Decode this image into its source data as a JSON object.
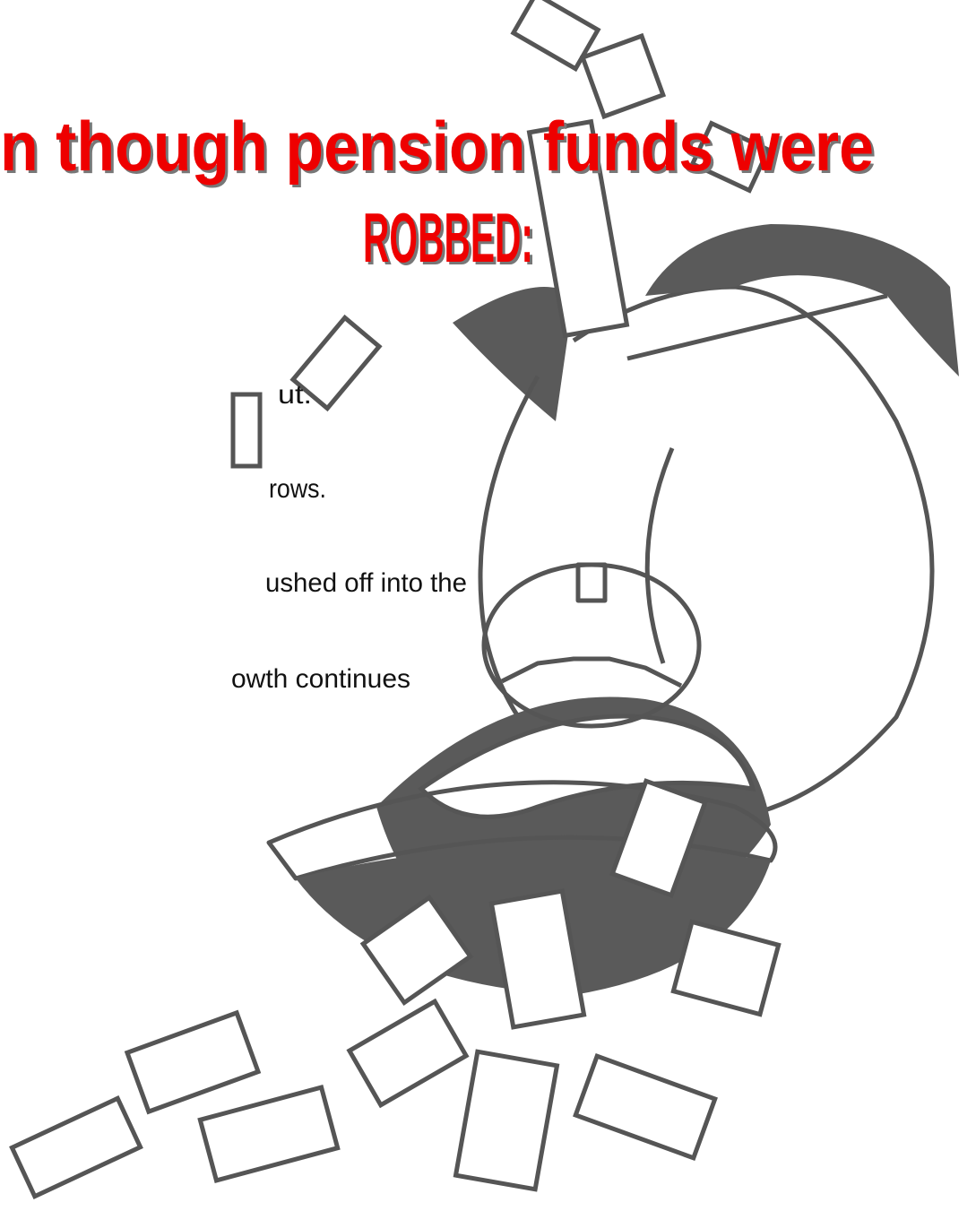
{
  "title": {
    "line1": "n though pension funds were",
    "line2": "ROBBED:"
  },
  "bullets": [
    "ut.",
    "rows.",
    "ushed off into the",
    "owth continues"
  ]
}
